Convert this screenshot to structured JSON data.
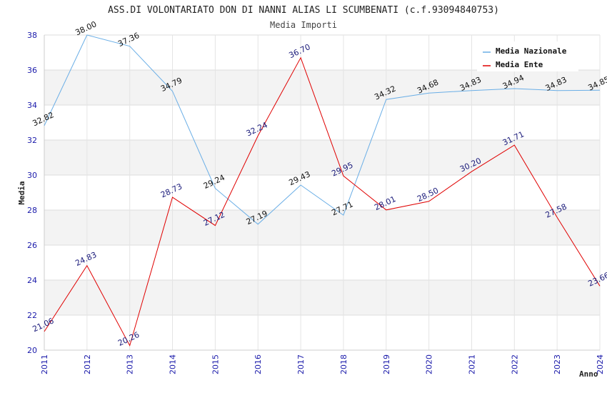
{
  "chart_data": {
    "type": "line",
    "title": "ASS.DI VOLONTARIATO DON DI NANNI ALIAS LI SCUMBENATI (c.f.93094840753)",
    "subtitle": "Media Importi",
    "xlabel": "Anno",
    "ylabel": "Media",
    "ylim": [
      20,
      38
    ],
    "yticks": [
      20,
      22,
      24,
      26,
      28,
      30,
      32,
      34,
      36,
      38
    ],
    "x": [
      "2011",
      "2012",
      "2013",
      "2014",
      "2015",
      "2016",
      "2017",
      "2018",
      "2019",
      "2020",
      "2021",
      "2022",
      "2023",
      "2024"
    ],
    "legend_position": "top-right",
    "series": [
      {
        "name": "Media Nazionale",
        "color": "#6aaee6",
        "label_color": "#111111",
        "values": [
          32.82,
          38.0,
          37.36,
          34.79,
          29.24,
          27.19,
          29.43,
          27.71,
          34.32,
          34.68,
          34.83,
          34.94,
          34.83,
          34.85
        ],
        "labels": [
          "32.82",
          "38.00",
          "37.36",
          "34.79",
          "29.24",
          "27.19",
          "29.43",
          "27.71",
          "34.32",
          "34.68",
          "34.83",
          "34.94",
          "34.83",
          "34.85"
        ]
      },
      {
        "name": "Media Ente",
        "color": "#e00000",
        "label_color": "#1a1a7a",
        "values": [
          21.06,
          24.83,
          20.26,
          28.73,
          27.12,
          32.24,
          36.7,
          29.95,
          28.01,
          28.5,
          30.2,
          31.71,
          27.58,
          23.66
        ],
        "labels": [
          "21.06",
          "24.83",
          "20.26",
          "28.73",
          "27.12",
          "32.24",
          "36.70",
          "29.95",
          "28.01",
          "28.50",
          "30.20",
          "31.71",
          "27.58",
          "23.66"
        ]
      }
    ]
  }
}
